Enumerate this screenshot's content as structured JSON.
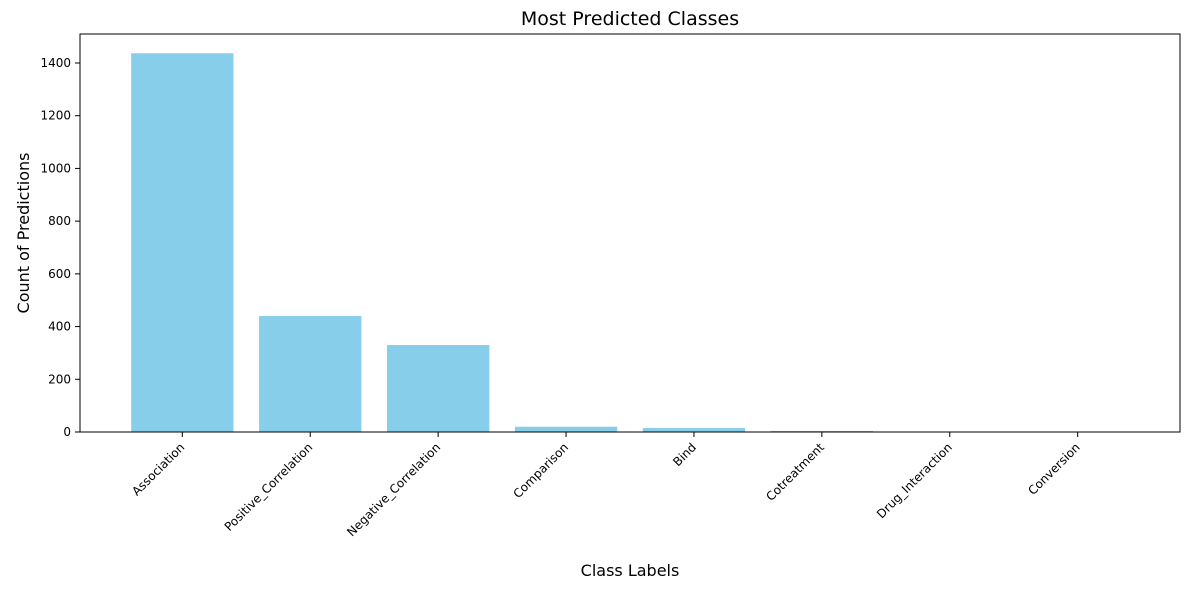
{
  "chart_data": {
    "type": "bar",
    "title": "Most Predicted Classes",
    "xlabel": "Class Labels",
    "ylabel": "Count of Predictions",
    "categories": [
      "Association",
      "Positive_Correlation",
      "Negative_Correlation",
      "Comparison",
      "Bind",
      "Cotreatment",
      "Drug_Interaction",
      "Conversion"
    ],
    "values": [
      1437,
      440,
      330,
      20,
      15,
      4,
      1,
      1
    ],
    "ylim": [
      0,
      1510
    ],
    "yticks": [
      0,
      200,
      400,
      600,
      800,
      1000,
      1200,
      1400
    ],
    "bar_color": "#87CEEB",
    "grid": false,
    "legend": "none"
  }
}
